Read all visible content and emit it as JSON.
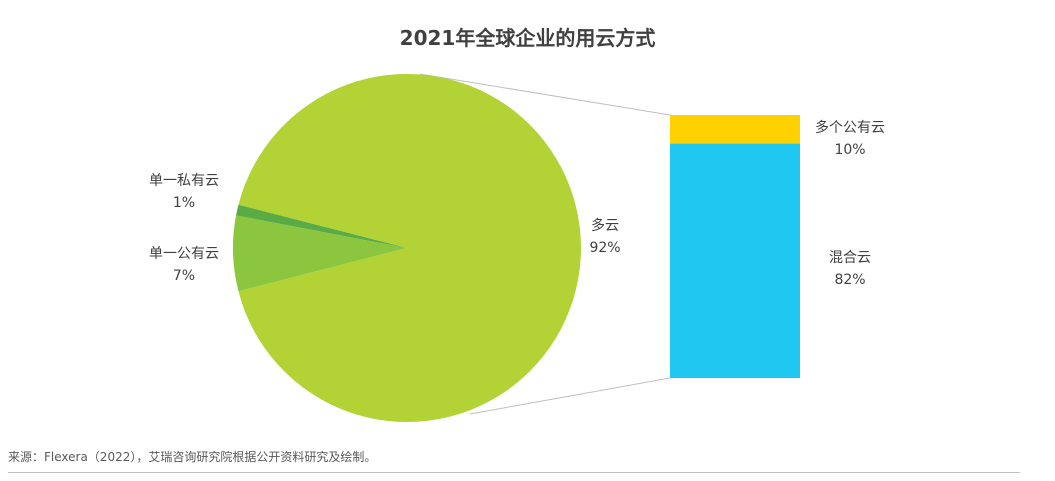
{
  "chart_data": {
    "type": "bar-of-pie",
    "title": "2021年全球企业的用云方式",
    "pie": {
      "slices": [
        {
          "name": "多云",
          "value": 92,
          "label": "92%",
          "color": "#b2d235"
        },
        {
          "name": "单一公有云",
          "value": 7,
          "label": "7%",
          "color": "#8cc63f"
        },
        {
          "name": "单一私有云",
          "value": 1,
          "label": "1%",
          "color": "#5aaa46"
        }
      ],
      "exploded": "多云"
    },
    "bar": {
      "parent": "多云",
      "segments": [
        {
          "name": "多个公有云",
          "value": 10,
          "label": "10%",
          "color": "#ffd100"
        },
        {
          "name": "混合云",
          "value": 82,
          "label": "82%",
          "color": "#1ec8f0"
        }
      ]
    }
  },
  "source": "来源：Flexera（2022），艾瑞咨询研究院根据公开资料研究及绘制。"
}
